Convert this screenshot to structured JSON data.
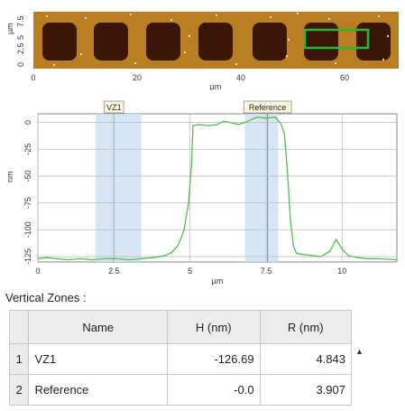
{
  "afm_image": {
    "y_unit": "µm",
    "y_ticks": [
      "0",
      "2.5",
      "5",
      "7.5"
    ],
    "x_ticks": [
      "0",
      "20",
      "40",
      "60"
    ],
    "x_unit": "µm",
    "colors": {
      "substrate": "#b97d22",
      "island": "#3a1608",
      "selection_box": "#22bb33"
    }
  },
  "profile": {
    "y_unit": "nm",
    "x_unit": "µm",
    "y_ticks": [
      "0",
      "-25",
      "-50",
      "-75",
      "-100",
      "-125"
    ],
    "x_ticks": [
      "0",
      "2.5",
      "5",
      "7.5",
      "10"
    ],
    "zones": [
      {
        "label": "VZ1",
        "from": 1.9,
        "to": 3.4,
        "cursor": 2.5
      },
      {
        "label": "Reference",
        "from": 6.8,
        "to": 7.9,
        "cursor": 7.55
      }
    ],
    "colors": {
      "trace": "#4ec24e",
      "zone_fill": "#c9dcf0",
      "grid": "#bdbdbd"
    }
  },
  "chart_data": {
    "type": "line",
    "title": "",
    "xlabel": "µm",
    "ylabel": "nm",
    "xlim": [
      0,
      11.8
    ],
    "ylim": [
      -130,
      8
    ],
    "grid": true,
    "x": [
      0,
      0.3,
      0.6,
      1.0,
      1.4,
      1.8,
      2.2,
      2.6,
      3.0,
      3.4,
      3.8,
      4.2,
      4.4,
      4.6,
      4.8,
      4.95,
      5.05,
      5.1,
      5.3,
      5.6,
      5.9,
      6.1,
      6.3,
      6.6,
      6.9,
      7.2,
      7.5,
      7.8,
      8.0,
      8.1,
      8.2,
      8.3,
      8.4,
      8.5,
      8.7,
      9.0,
      9.3,
      9.6,
      9.8,
      10.0,
      10.2,
      10.5,
      10.8,
      11.2,
      11.8
    ],
    "y": [
      -127,
      -126,
      -127,
      -128,
      -127,
      -128,
      -127,
      -127,
      -128,
      -127,
      -126,
      -124,
      -121,
      -115,
      -101,
      -75,
      -40,
      -3,
      -2,
      -3,
      -2,
      1,
      0,
      -2,
      1,
      5,
      4,
      5,
      -2,
      -10,
      -45,
      -90,
      -115,
      -122,
      -123,
      -124,
      -125,
      -120,
      -109,
      -118,
      -124,
      -126,
      -127,
      -127,
      -128
    ]
  },
  "vertical_zones": {
    "title": "Vertical Zones :",
    "columns": [
      "Name",
      "H (nm)",
      "R (nm)"
    ],
    "rows": [
      {
        "index": "1",
        "name": "VZ1",
        "h": "-126.69",
        "r": "4.843"
      },
      {
        "index": "2",
        "name": "Reference",
        "h": "-0.0",
        "r": "3.907"
      }
    ]
  }
}
